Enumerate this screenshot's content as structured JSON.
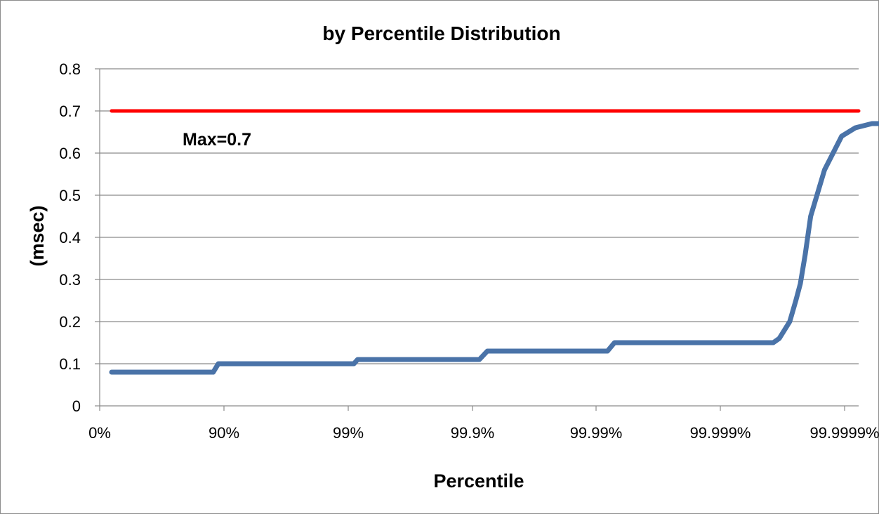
{
  "chart_data": {
    "type": "line",
    "title": "by Percentile Distribution",
    "xlabel": "Percentile",
    "ylabel": "(msec)",
    "x_scale": "percentile (log of 1/(1-p))",
    "x_tick_labels": [
      "0%",
      "90%",
      "99%",
      "99.9%",
      "99.99%",
      "99.999%",
      "99.9999%"
    ],
    "y_ticks": [
      "0",
      "0.1",
      "0.2",
      "0.3",
      "0.4",
      "0.5",
      "0.6",
      "0.7",
      "0.8"
    ],
    "ylim": [
      0,
      0.8
    ],
    "grid": "horizontal",
    "series": [
      {
        "color": "#4a73a8",
        "x": [
          "0%",
          "73.7%",
          "87.8%",
          "88.9%",
          "99.1%",
          "99.16%",
          "99.912%",
          "99.924%",
          "99.9918%",
          "99.9928%",
          "99.99962%",
          "99.99966%",
          "99.99972%",
          "99.99975%",
          "99.99977%",
          "99.99979%",
          "99.99981%",
          "99.999853%",
          "99.999893%",
          "99.999917%",
          "99.999939%",
          "99.999955%",
          "99.999957%",
          "99.9999599%",
          "99.9999714%",
          "99.9999957%"
        ],
        "values": [
          0.08,
          0.08,
          0.08,
          0.1,
          0.1,
          0.11,
          0.11,
          0.13,
          0.13,
          0.15,
          0.15,
          0.16,
          0.2,
          0.25,
          0.29,
          0.36,
          0.45,
          0.56,
          0.64,
          0.66,
          0.67,
          0.67,
          0.68,
          0.69,
          0.69,
          0.7
        ]
      },
      {
        "color": "#ff0000",
        "x": [
          "0%",
          "99.9999957%"
        ],
        "values": [
          0.7,
          0.7
        ]
      }
    ],
    "annotations": [
      {
        "text": "Max=0.7",
        "near_y": 0.65
      }
    ]
  }
}
